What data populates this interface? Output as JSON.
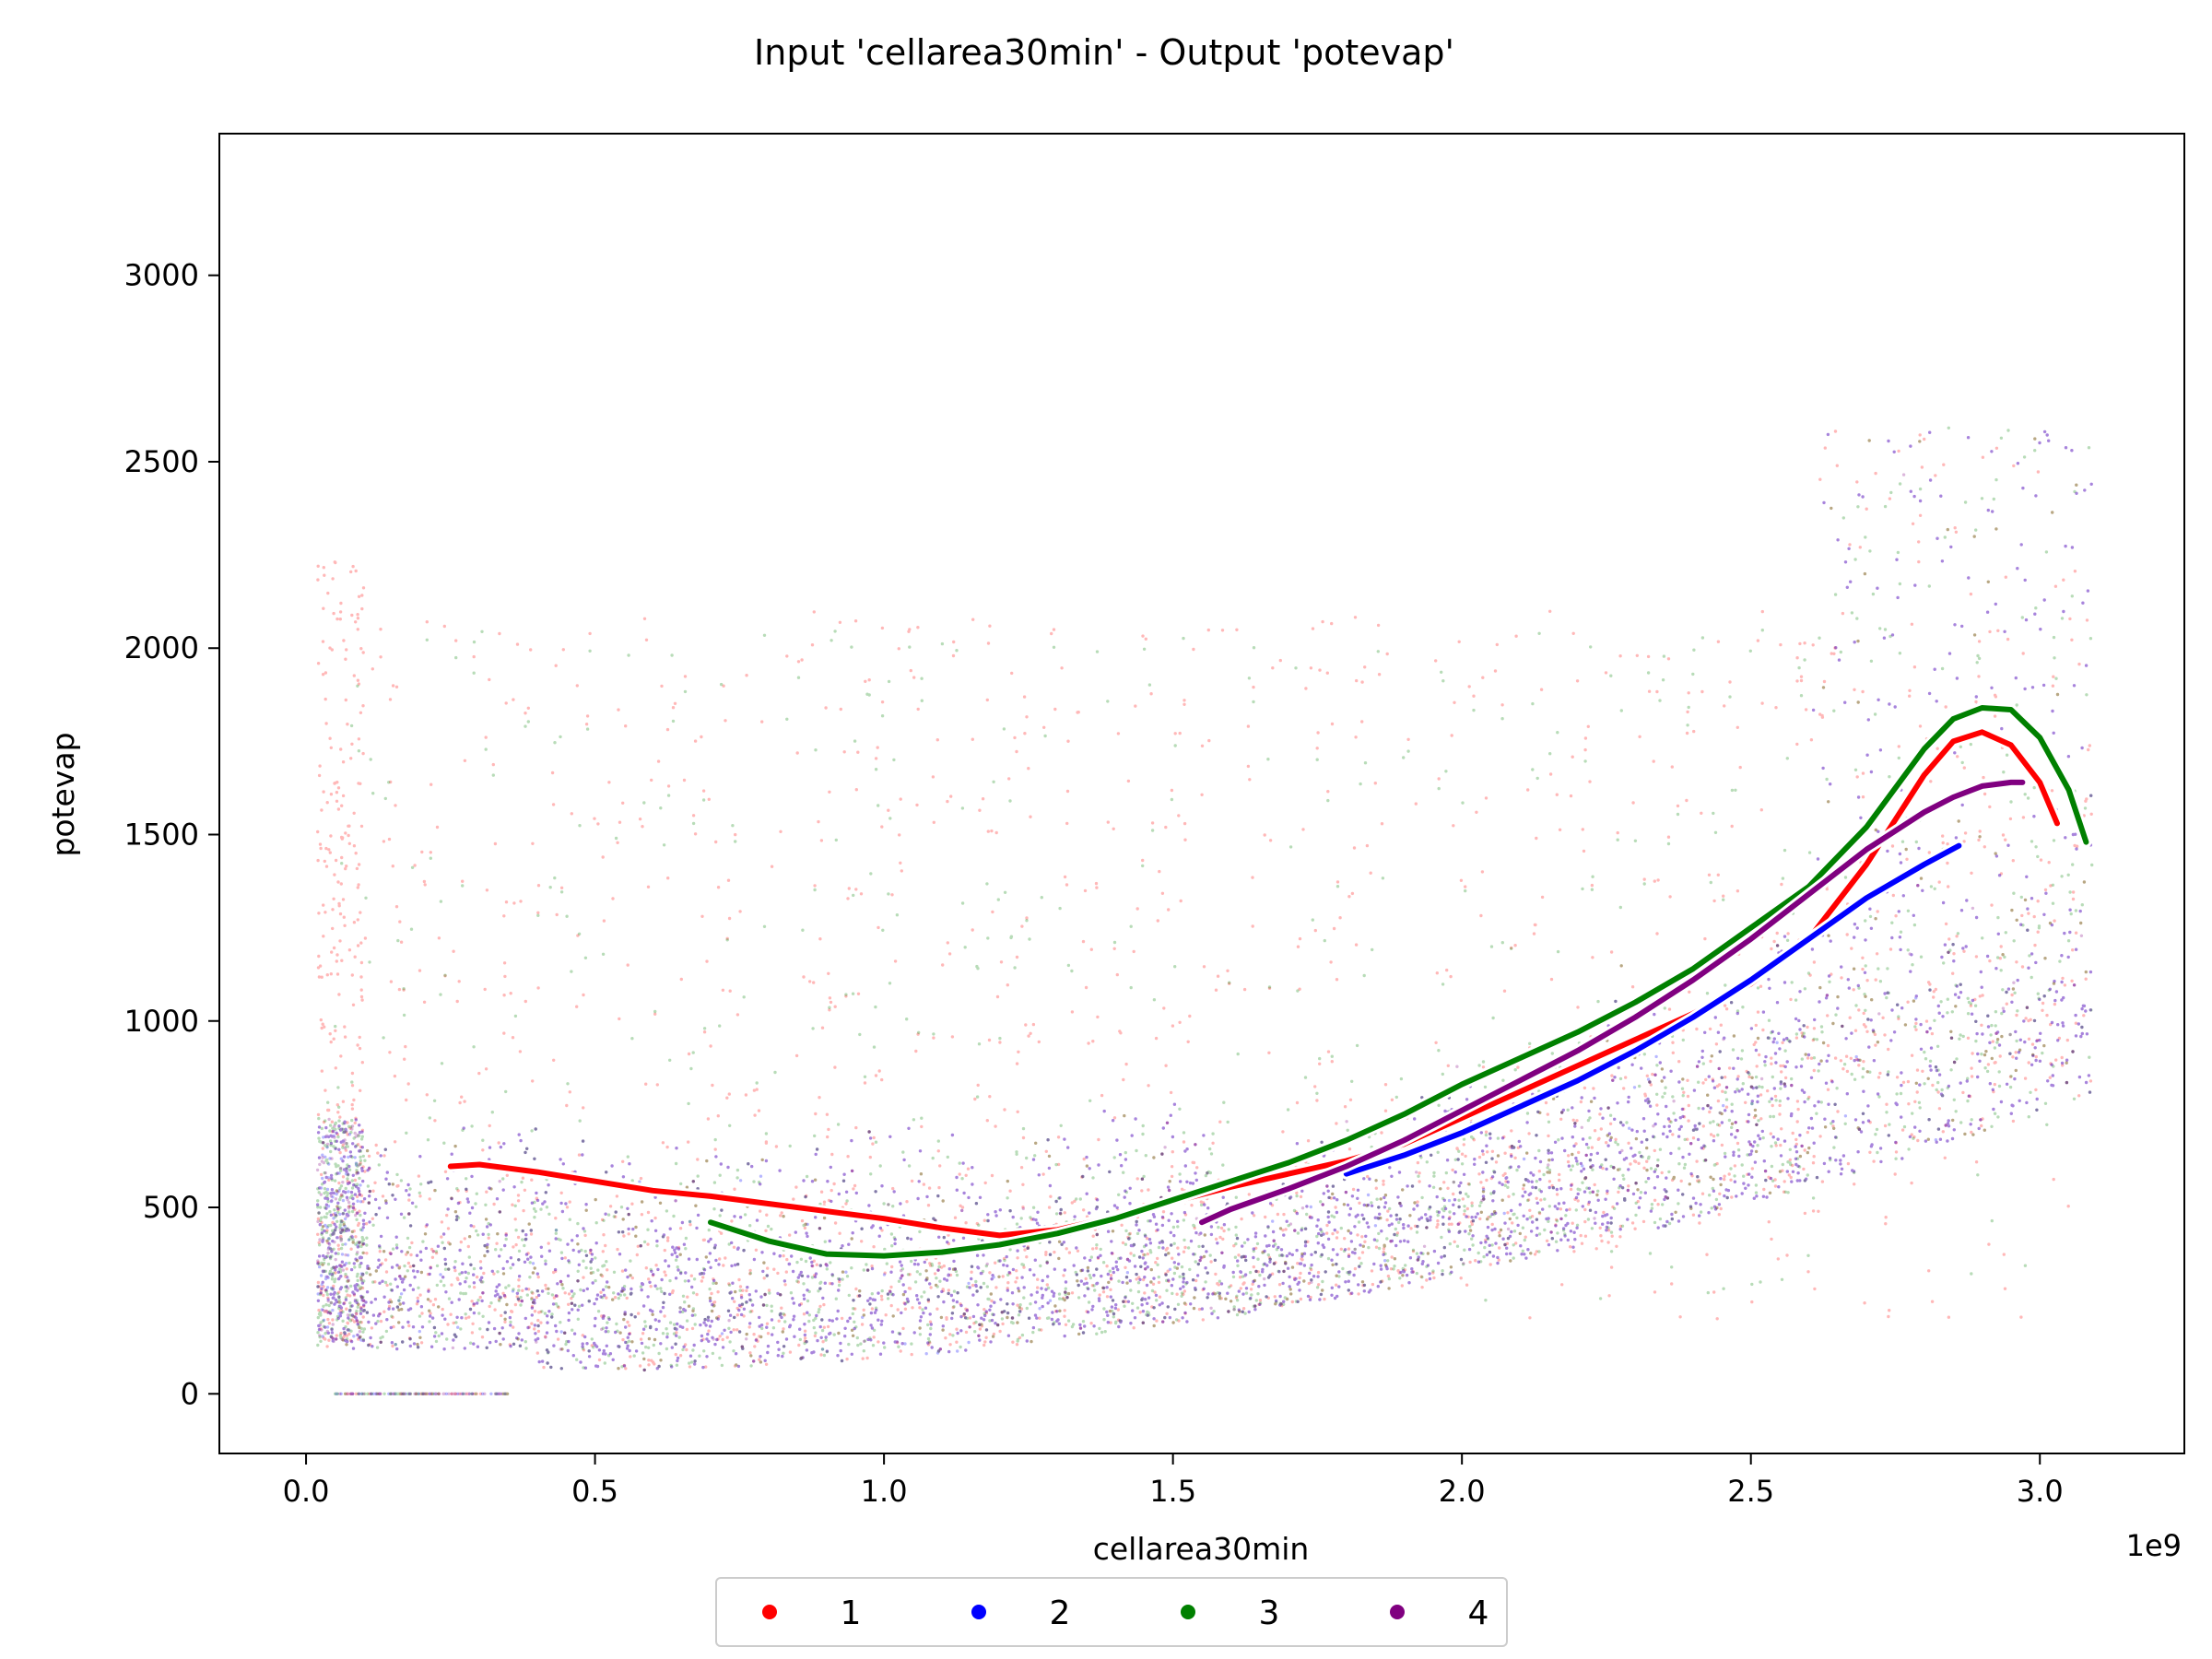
{
  "chart_data": {
    "type": "scatter",
    "title": "Input 'cellarea30min' - Output 'potevap'",
    "xlabel": "cellarea30min",
    "ylabel": "potevap",
    "x_offset_label": "1e9",
    "xlim": [
      -0.15,
      3.25
    ],
    "ylim": [
      -160,
      3380
    ],
    "x_unit_multiplier": 1000000000,
    "x_ticks": [
      0.0,
      0.5,
      1.0,
      1.5,
      2.0,
      2.5,
      3.0
    ],
    "x_tick_labels": [
      "0.0",
      "0.5",
      "1.0",
      "1.5",
      "2.0",
      "2.5",
      "3.0"
    ],
    "y_ticks": [
      0,
      500,
      1000,
      1500,
      2000,
      2500,
      3000
    ],
    "y_tick_labels": [
      "0",
      "500",
      "1000",
      "1500",
      "2000",
      "2500",
      "3000"
    ],
    "grid": false,
    "legend": {
      "placement": "bottom-center",
      "columns": 4
    },
    "series": [
      {
        "name": "1",
        "color": "#ff0000",
        "trend_x": [
          0.25,
          0.3,
          0.4,
          0.5,
          0.6,
          0.7,
          0.8,
          0.9,
          1.0,
          1.1,
          1.2,
          1.3,
          1.4,
          1.5,
          1.6,
          1.7,
          1.8,
          1.9,
          2.0,
          2.1,
          2.2,
          2.3,
          2.4,
          2.5,
          2.6,
          2.7,
          2.8,
          2.85,
          2.9,
          2.95,
          3.0,
          3.03
        ],
        "trend_y": [
          610,
          615,
          595,
          570,
          545,
          530,
          510,
          490,
          470,
          445,
          425,
          440,
          475,
          515,
          555,
          590,
          625,
          670,
          740,
          810,
          880,
          950,
          1020,
          1100,
          1220,
          1420,
          1660,
          1750,
          1775,
          1740,
          1640,
          1530
        ]
      },
      {
        "name": "2",
        "color": "#0000ff",
        "trend_x": [
          1.8,
          1.9,
          2.0,
          2.1,
          2.2,
          2.3,
          2.4,
          2.5,
          2.6,
          2.7,
          2.8,
          2.86
        ],
        "trend_y": [
          590,
          640,
          700,
          770,
          840,
          920,
          1010,
          1110,
          1220,
          1330,
          1420,
          1470
        ]
      },
      {
        "name": "3",
        "color": "#008000",
        "trend_x": [
          0.7,
          0.8,
          0.9,
          1.0,
          1.1,
          1.2,
          1.3,
          1.4,
          1.5,
          1.6,
          1.7,
          1.8,
          1.9,
          2.0,
          2.1,
          2.2,
          2.3,
          2.4,
          2.5,
          2.6,
          2.7,
          2.8,
          2.85,
          2.9,
          2.95,
          3.0,
          3.05,
          3.08
        ],
        "trend_y": [
          460,
          410,
          375,
          370,
          380,
          400,
          430,
          470,
          520,
          570,
          620,
          680,
          750,
          830,
          900,
          970,
          1050,
          1140,
          1250,
          1360,
          1520,
          1730,
          1810,
          1840,
          1835,
          1760,
          1620,
          1480
        ]
      },
      {
        "name": "4",
        "color": "#800080",
        "trend_x": [
          1.55,
          1.6,
          1.7,
          1.8,
          1.9,
          2.0,
          2.1,
          2.2,
          2.3,
          2.4,
          2.5,
          2.6,
          2.7,
          2.8,
          2.85,
          2.9,
          2.95,
          2.97
        ],
        "trend_y": [
          460,
          495,
          550,
          610,
          680,
          760,
          840,
          920,
          1010,
          1110,
          1220,
          1340,
          1460,
          1560,
          1600,
          1630,
          1640,
          1640
        ]
      }
    ]
  }
}
